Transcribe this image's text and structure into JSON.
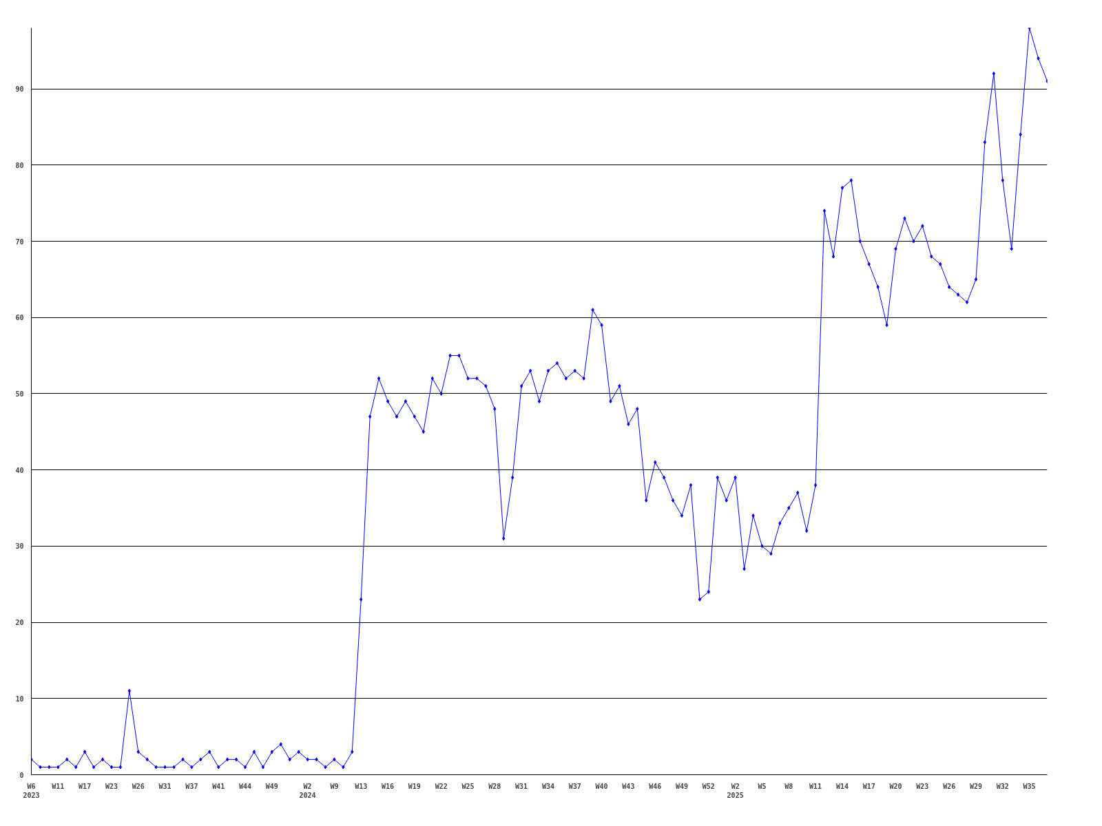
{
  "chart_data": {
    "type": "line",
    "categories": [
      "W6\n2023",
      null,
      null,
      "W11",
      null,
      null,
      "W17",
      null,
      null,
      "W23",
      null,
      null,
      "W26",
      null,
      null,
      "W31",
      null,
      null,
      "W37",
      null,
      null,
      "W41",
      null,
      null,
      "W44",
      null,
      null,
      "W49",
      null,
      null,
      null,
      "W2\n2024",
      null,
      null,
      "W9",
      null,
      null,
      "W13",
      null,
      null,
      "W16",
      null,
      null,
      "W19",
      null,
      null,
      "W22",
      null,
      null,
      "W25",
      null,
      null,
      "W28",
      null,
      null,
      "W31",
      null,
      null,
      "W34",
      null,
      null,
      "W37",
      null,
      null,
      "W40",
      null,
      null,
      "W43",
      null,
      null,
      "W46",
      null,
      null,
      "W49",
      null,
      null,
      "W52",
      null,
      null,
      "W2\n2025",
      null,
      null,
      "W5",
      null,
      null,
      "W8",
      null,
      null,
      "W11",
      null,
      null,
      "W14",
      null,
      null,
      "W17",
      null,
      null,
      "W20",
      null,
      null,
      "W23",
      null,
      null,
      "W26",
      null,
      null,
      "W29",
      null,
      null,
      "W32",
      null,
      null,
      "W35",
      null,
      null
    ],
    "series": [
      {
        "color": "#0000ff",
        "values": [
          2,
          1,
          1,
          1,
          2,
          1,
          3,
          1,
          2,
          1,
          1,
          11,
          3,
          2,
          1,
          1,
          1,
          2,
          1,
          2,
          3,
          1,
          2,
          2,
          1,
          3,
          1,
          3,
          4,
          2,
          3,
          2,
          2,
          1,
          2,
          1,
          3,
          23,
          47,
          52,
          49,
          47,
          49,
          47,
          45,
          52,
          50,
          55,
          55,
          52,
          52,
          51,
          48,
          31,
          39,
          51,
          53,
          49,
          53,
          54,
          52,
          53,
          52,
          61,
          59,
          49,
          51,
          46,
          48,
          36,
          41,
          39,
          36,
          34,
          38,
          23,
          24,
          39,
          36,
          39,
          27,
          34,
          30,
          29,
          33,
          35,
          37,
          32,
          38,
          74,
          68,
          77,
          78,
          70,
          67,
          64,
          59,
          69,
          73,
          70,
          72,
          68,
          67,
          64,
          63,
          62,
          65,
          83,
          92,
          78,
          69,
          84,
          98,
          94,
          91
        ]
      }
    ],
    "ylim": [
      0,
      98
    ],
    "yticks": [
      0,
      10,
      20,
      30,
      40,
      50,
      60,
      70,
      80,
      90
    ],
    "grid": "y",
    "marker": "diamond",
    "line_style": "solid"
  }
}
